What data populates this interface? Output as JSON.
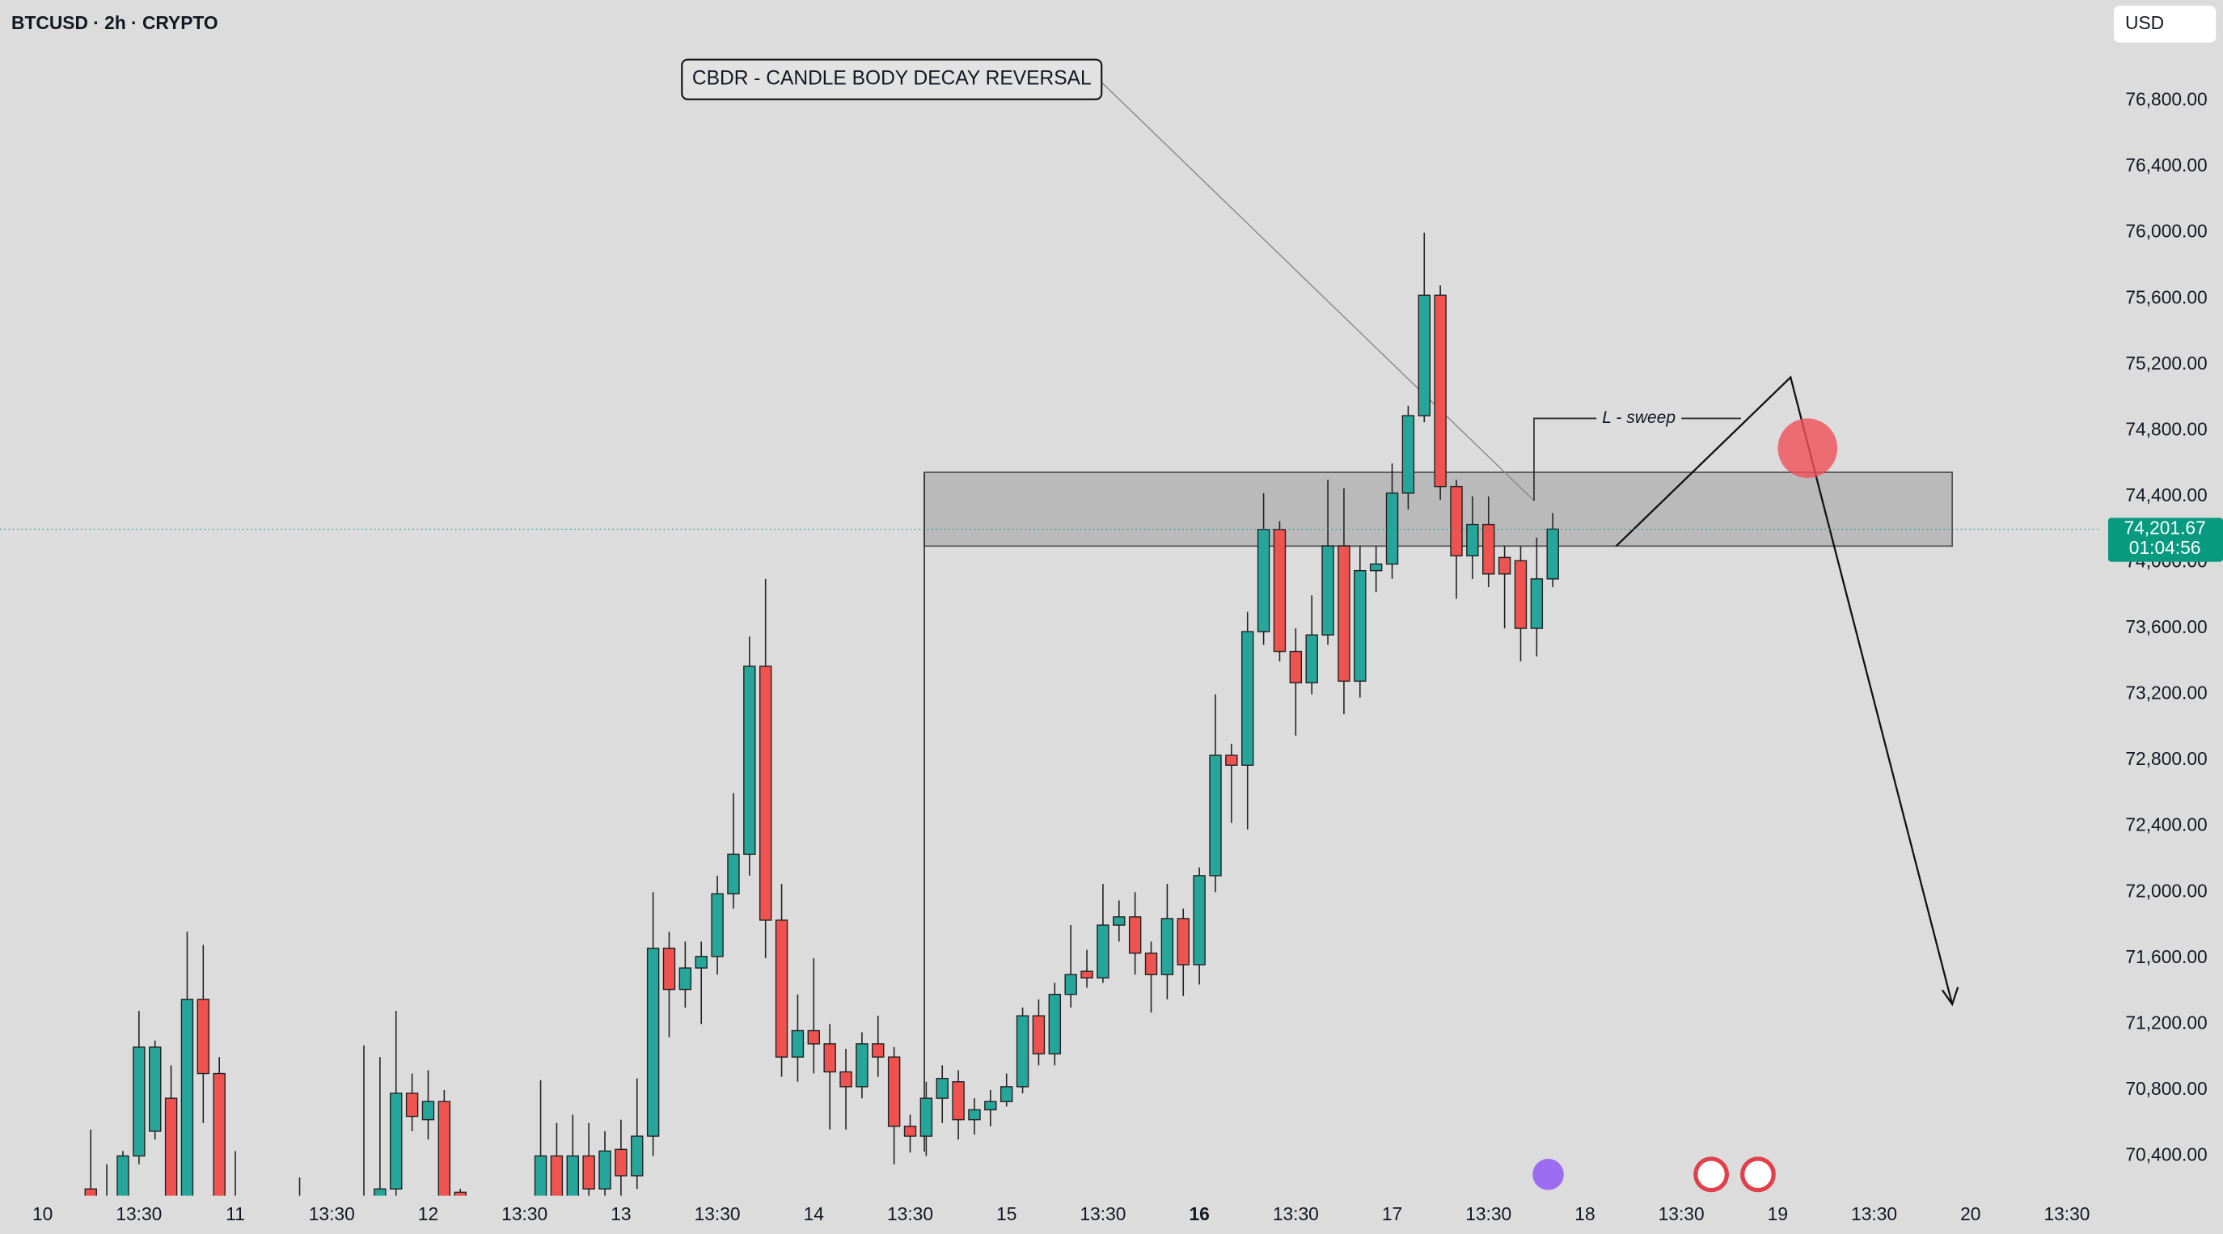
{
  "chart_data": {
    "type": "candlestick",
    "title": "BTCUSD · 2h · CRYPTO",
    "currency": "USD",
    "x": [
      6,
      8,
      10,
      12,
      14,
      16,
      18,
      20,
      22,
      24,
      32,
      40,
      42,
      44,
      46,
      48,
      50,
      52,
      62,
      64,
      66,
      68,
      70,
      72,
      74,
      76,
      78,
      80,
      82,
      84,
      86,
      88,
      90,
      92,
      94,
      96,
      98,
      100,
      102,
      104,
      106,
      108,
      110,
      112,
      114,
      116,
      118,
      120,
      122,
      124,
      126,
      128,
      130,
      132,
      134,
      136,
      138,
      140,
      142,
      144,
      146,
      148,
      150,
      152,
      154,
      156,
      158,
      160,
      162,
      164,
      166,
      168,
      170,
      172,
      174,
      176,
      178,
      180,
      182,
      184,
      186,
      188
    ],
    "open": [
      70200,
      70100,
      70100,
      70400,
      70550,
      70750,
      70100,
      71350,
      70900,
      70100,
      69900,
      69950,
      70100,
      70200,
      70780,
      70620,
      70730,
      70180,
      70100,
      70400,
      70150,
      70400,
      70200,
      70440,
      70280,
      70520,
      71660,
      71410,
      71540,
      71610,
      71990,
      72230,
      73370,
      71830,
      71000,
      71160,
      71080,
      70910,
      70820,
      71080,
      71000,
      70580,
      70520,
      70750,
      70850,
      70620,
      70680,
      70730,
      70820,
      71250,
      71020,
      71380,
      71520,
      71480,
      71800,
      71850,
      71630,
      71500,
      71840,
      71560,
      72100,
      72830,
      72770,
      73580,
      74200,
      73460,
      73270,
      73560,
      74100,
      73280,
      73950,
      73990,
      74420,
      74890,
      75620,
      74460,
      74040,
      74230,
      74030,
      74010,
      73600,
      73900
    ],
    "high": [
      70560,
      70350,
      70430,
      71280,
      71100,
      70950,
      71760,
      71680,
      71000,
      70430,
      70270,
      71070,
      71000,
      71280,
      70900,
      70920,
      70800,
      70200,
      70860,
      70600,
      70650,
      70600,
      70550,
      70620,
      70870,
      72000,
      71760,
      71700,
      71700,
      72100,
      72600,
      73550,
      73900,
      72050,
      71380,
      71600,
      71200,
      71050,
      71150,
      71250,
      71060,
      70650,
      70850,
      70950,
      70920,
      70750,
      70800,
      70900,
      71300,
      71350,
      71450,
      71800,
      71650,
      72050,
      71950,
      72000,
      71700,
      72050,
      71900,
      72150,
      73200,
      72900,
      73700,
      74420,
      74250,
      73600,
      73800,
      74500,
      74450,
      74100,
      74100,
      74600,
      74950,
      76000,
      75680,
      74500,
      74400,
      74400,
      74100,
      74100,
      74150,
      74300
    ],
    "low": [
      69900,
      69900,
      70050,
      70350,
      70500,
      70000,
      70000,
      70600,
      70000,
      69900,
      69800,
      69900,
      70050,
      70150,
      70550,
      70500,
      70050,
      70100,
      70050,
      70050,
      70050,
      70100,
      70150,
      70150,
      70200,
      70400,
      71120,
      71300,
      71200,
      71500,
      71900,
      72100,
      71600,
      70880,
      70850,
      70900,
      70560,
      70560,
      70750,
      70880,
      70350,
      70420,
      70400,
      70600,
      70500,
      70530,
      70580,
      70700,
      70780,
      70950,
      70950,
      71300,
      71420,
      71450,
      71700,
      71500,
      71270,
      71350,
      71370,
      71440,
      72000,
      72420,
      72380,
      73500,
      73400,
      72950,
      73200,
      73500,
      73080,
      73180,
      73820,
      73900,
      74320,
      74850,
      74380,
      73780,
      73900,
      73850,
      73600,
      73400,
      73430,
      73850
    ],
    "close": [
      70150,
      70150,
      70400,
      71060,
      71060,
      70100,
      71350,
      70900,
      70100,
      70150,
      69950,
      70050,
      70200,
      70780,
      70640,
      70730,
      70100,
      70150,
      70400,
      70100,
      70400,
      70200,
      70430,
      70280,
      70520,
      71660,
      71410,
      71540,
      71610,
      71990,
      72230,
      73370,
      71830,
      71000,
      71160,
      71080,
      70910,
      70820,
      71080,
      71000,
      70580,
      70520,
      70750,
      70870,
      70620,
      70680,
      70730,
      70820,
      71250,
      71020,
      71380,
      71500,
      71480,
      71800,
      71850,
      71630,
      71500,
      71840,
      71560,
      72100,
      72830,
      72770,
      73580,
      74200,
      73460,
      73270,
      73560,
      74100,
      73280,
      73950,
      73990,
      74420,
      74890,
      75620,
      74460,
      74040,
      74230,
      73930,
      73930,
      73600,
      73900,
      74201.67
    ],
    "up_color": "#26a69a",
    "down_color": "#ef5350",
    "xlim": [
      -5.3,
      255.9
    ],
    "ylim": [
      70159,
      77411
    ],
    "xticks": [
      {
        "value": 0,
        "label": "10"
      },
      {
        "value": 12,
        "label": "13:30"
      },
      {
        "value": 24,
        "label": "11"
      },
      {
        "value": 36,
        "label": "13:30"
      },
      {
        "value": 48,
        "label": "12"
      },
      {
        "value": 60,
        "label": "13:30"
      },
      {
        "value": 72,
        "label": "13"
      },
      {
        "value": 84,
        "label": "13:30"
      },
      {
        "value": 96,
        "label": "14"
      },
      {
        "value": 108,
        "label": "13:30"
      },
      {
        "value": 120,
        "label": "15"
      },
      {
        "value": 132,
        "label": "13:30"
      },
      {
        "value": 144,
        "label": "16"
      },
      {
        "value": 156,
        "label": "13:30"
      },
      {
        "value": 168,
        "label": "17"
      },
      {
        "value": 180,
        "label": "13:30"
      },
      {
        "value": 192,
        "label": "18"
      },
      {
        "value": 204,
        "label": "13:30"
      },
      {
        "value": 216,
        "label": "19"
      },
      {
        "value": 228,
        "label": "13:30"
      },
      {
        "value": 240,
        "label": "20"
      },
      {
        "value": 252,
        "label": "13:30"
      }
    ],
    "yticks": [
      {
        "value": 70400,
        "label": "70,400.00"
      },
      {
        "value": 70800,
        "label": "70,800.00"
      },
      {
        "value": 71200,
        "label": "71,200.00"
      },
      {
        "value": 71600,
        "label": "71,600.00"
      },
      {
        "value": 72000,
        "label": "72,000.00"
      },
      {
        "value": 72400,
        "label": "72,400.00"
      },
      {
        "value": 72800,
        "label": "72,800.00"
      },
      {
        "value": 73200,
        "label": "73,200.00"
      },
      {
        "value": 73600,
        "label": "73,600.00"
      },
      {
        "value": 74000,
        "label": "74,000.00"
      },
      {
        "value": 74400,
        "label": "74,400.00"
      },
      {
        "value": 74800,
        "label": "74,800.00"
      },
      {
        "value": 75200,
        "label": "75,200.00"
      },
      {
        "value": 75600,
        "label": "75,600.00"
      },
      {
        "value": 76000,
        "label": "76,000.00"
      },
      {
        "value": 76400,
        "label": "76,400.00"
      },
      {
        "value": 76800,
        "label": "76,800.00"
      }
    ],
    "last_price": {
      "value": 74201.67,
      "label": "74,201.67"
    },
    "countdown": "01:04:56",
    "annotations": {
      "box": "CBDR - CANDLE BODY DECAY REVERSAL",
      "sweep": "L - sweep"
    }
  }
}
